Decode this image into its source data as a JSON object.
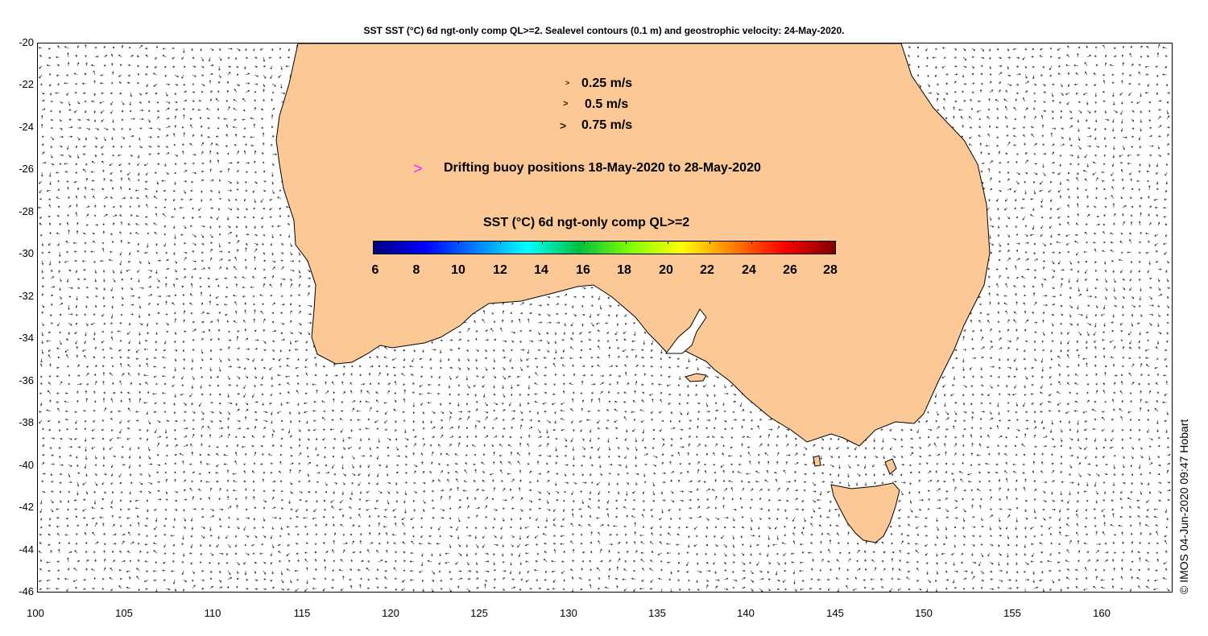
{
  "title": "SST SST (°C) 6d ngt-only comp QL>=2. Sealevel contours (0.1 m) and geostrophic velocity: 24-May-2020.",
  "axes": {
    "lon_ticks": [
      "100",
      "105",
      "110",
      "115",
      "120",
      "125",
      "130",
      "135",
      "140",
      "145",
      "150",
      "155",
      "160"
    ],
    "lat_ticks": [
      "-20",
      "-22",
      "-24",
      "-26",
      "-28",
      "-30",
      "-32",
      "-34",
      "-36",
      "-38",
      "-40",
      "-42",
      "-44",
      "-46"
    ],
    "lon_range": [
      100,
      164
    ],
    "lat_range": [
      -46,
      -20
    ]
  },
  "legend": {
    "velocity_scale": [
      {
        "label": "0.25 m/s",
        "speed": 0.25
      },
      {
        "label": "0.5 m/s",
        "speed": 0.5
      },
      {
        "label": "0.75 m/s",
        "speed": 0.75
      }
    ],
    "buoy_arrow": ">",
    "buoy_label": "Drifting buoy positions 18-May-2020 to 28-May-2020",
    "buoy_color": "#ff22ff"
  },
  "colorbar": {
    "title": "SST (°C) 6d ngt-only comp QL>=2",
    "ticks": [
      "6",
      "8",
      "10",
      "12",
      "14",
      "16",
      "18",
      "20",
      "22",
      "24",
      "26",
      "28"
    ],
    "range": [
      6,
      28
    ],
    "palette": [
      "#00007f",
      "#0000ff",
      "#0080ff",
      "#00ffff",
      "#00c040",
      "#80ff00",
      "#ffff00",
      "#ff8000",
      "#ff0000",
      "#7f0000"
    ]
  },
  "colors": {
    "land": "#fcc896",
    "coast": "#000000",
    "vectors": "#222222"
  },
  "credit": "© IMOS 04-Jun-2020 09:47 Hobart"
}
